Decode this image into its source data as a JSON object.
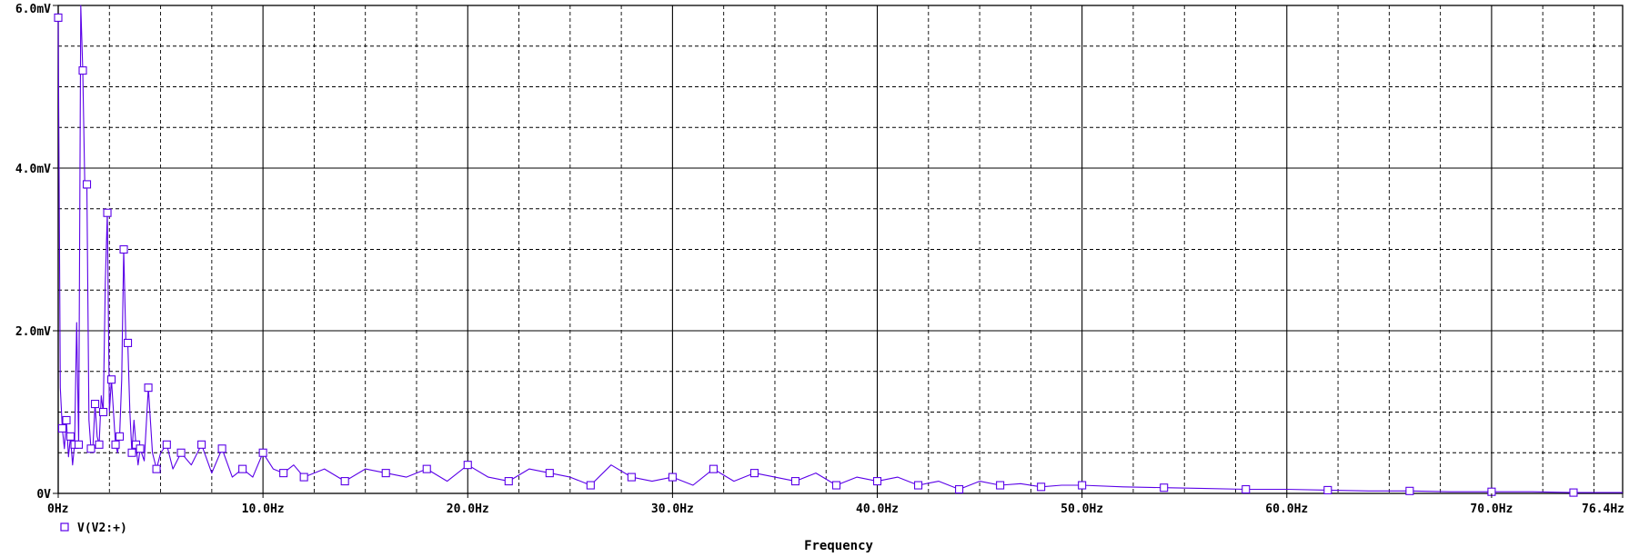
{
  "chart_data": {
    "type": "line",
    "xlabel": "Frequency",
    "ylabel": "",
    "xlim": [
      0,
      76.4
    ],
    "ylim": [
      0,
      6.0
    ],
    "x_unit": "Hz",
    "y_unit": "mV",
    "grid": true,
    "legend_position": "bottom-left",
    "x_ticks": [
      {
        "value": 0,
        "label": "0Hz"
      },
      {
        "value": 10,
        "label": "10.0Hz"
      },
      {
        "value": 20,
        "label": "20.0Hz"
      },
      {
        "value": 30,
        "label": "30.0Hz"
      },
      {
        "value": 40,
        "label": "40.0Hz"
      },
      {
        "value": 50,
        "label": "50.0Hz"
      },
      {
        "value": 60,
        "label": "60.0Hz"
      },
      {
        "value": 70,
        "label": "70.0Hz"
      },
      {
        "value": 76.4,
        "label": "76.4Hz"
      }
    ],
    "y_ticks": [
      {
        "value": 0,
        "label": "0V"
      },
      {
        "value": 2.0,
        "label": "2.0mV"
      },
      {
        "value": 4.0,
        "label": "4.0mV"
      },
      {
        "value": 6.0,
        "label": "6.0mV"
      }
    ],
    "series": [
      {
        "name": "V(V2:+)",
        "color": "#5a00e8",
        "marker": "square",
        "x": [
          0.0,
          0.1,
          0.2,
          0.3,
          0.4,
          0.5,
          0.6,
          0.7,
          0.8,
          0.9,
          1.0,
          1.1,
          1.2,
          1.3,
          1.4,
          1.5,
          1.6,
          1.7,
          1.8,
          1.9,
          2.0,
          2.1,
          2.2,
          2.3,
          2.4,
          2.5,
          2.6,
          2.7,
          2.8,
          2.9,
          3.0,
          3.1,
          3.2,
          3.3,
          3.4,
          3.5,
          3.6,
          3.7,
          3.8,
          3.9,
          4.0,
          4.2,
          4.4,
          4.6,
          4.8,
          5.0,
          5.3,
          5.6,
          6.0,
          6.5,
          7.0,
          7.5,
          8.0,
          8.5,
          9.0,
          9.5,
          10.0,
          10.5,
          11.0,
          11.5,
          12.0,
          13.0,
          14.0,
          15.0,
          16.0,
          17.0,
          18.0,
          19.0,
          20.0,
          21.0,
          22.0,
          23.0,
          24.0,
          25.0,
          26.0,
          27.0,
          28.0,
          29.0,
          30.0,
          31.0,
          32.0,
          33.0,
          34.0,
          35.0,
          36.0,
          37.0,
          38.0,
          39.0,
          40.0,
          41.0,
          42.0,
          43.0,
          44.0,
          45.0,
          46.0,
          47.0,
          48.0,
          49.0,
          50.0,
          52.0,
          54.0,
          56.0,
          58.0,
          60.0,
          62.0,
          64.0,
          66.0,
          68.0,
          70.0,
          72.0,
          74.0,
          76.4
        ],
        "y": [
          5.85,
          1.3,
          0.8,
          0.55,
          0.9,
          0.45,
          0.7,
          0.35,
          0.6,
          2.1,
          0.6,
          6.0,
          5.2,
          3.75,
          3.8,
          0.9,
          0.55,
          0.6,
          1.1,
          0.7,
          0.6,
          1.2,
          1.0,
          2.6,
          3.45,
          1.0,
          1.4,
          1.0,
          0.6,
          0.5,
          0.7,
          1.4,
          3.0,
          1.9,
          1.85,
          1.0,
          0.5,
          0.9,
          0.6,
          0.35,
          0.55,
          0.4,
          1.3,
          0.5,
          0.3,
          0.5,
          0.6,
          0.3,
          0.5,
          0.35,
          0.6,
          0.25,
          0.55,
          0.2,
          0.3,
          0.2,
          0.5,
          0.3,
          0.25,
          0.35,
          0.2,
          0.3,
          0.15,
          0.3,
          0.25,
          0.2,
          0.3,
          0.15,
          0.35,
          0.2,
          0.15,
          0.3,
          0.25,
          0.2,
          0.1,
          0.35,
          0.2,
          0.15,
          0.2,
          0.1,
          0.3,
          0.15,
          0.25,
          0.2,
          0.15,
          0.25,
          0.1,
          0.2,
          0.15,
          0.2,
          0.1,
          0.15,
          0.05,
          0.15,
          0.1,
          0.12,
          0.08,
          0.1,
          0.1,
          0.08,
          0.07,
          0.06,
          0.05,
          0.05,
          0.04,
          0.03,
          0.03,
          0.02,
          0.02,
          0.02,
          0.01,
          0.01
        ]
      }
    ]
  }
}
